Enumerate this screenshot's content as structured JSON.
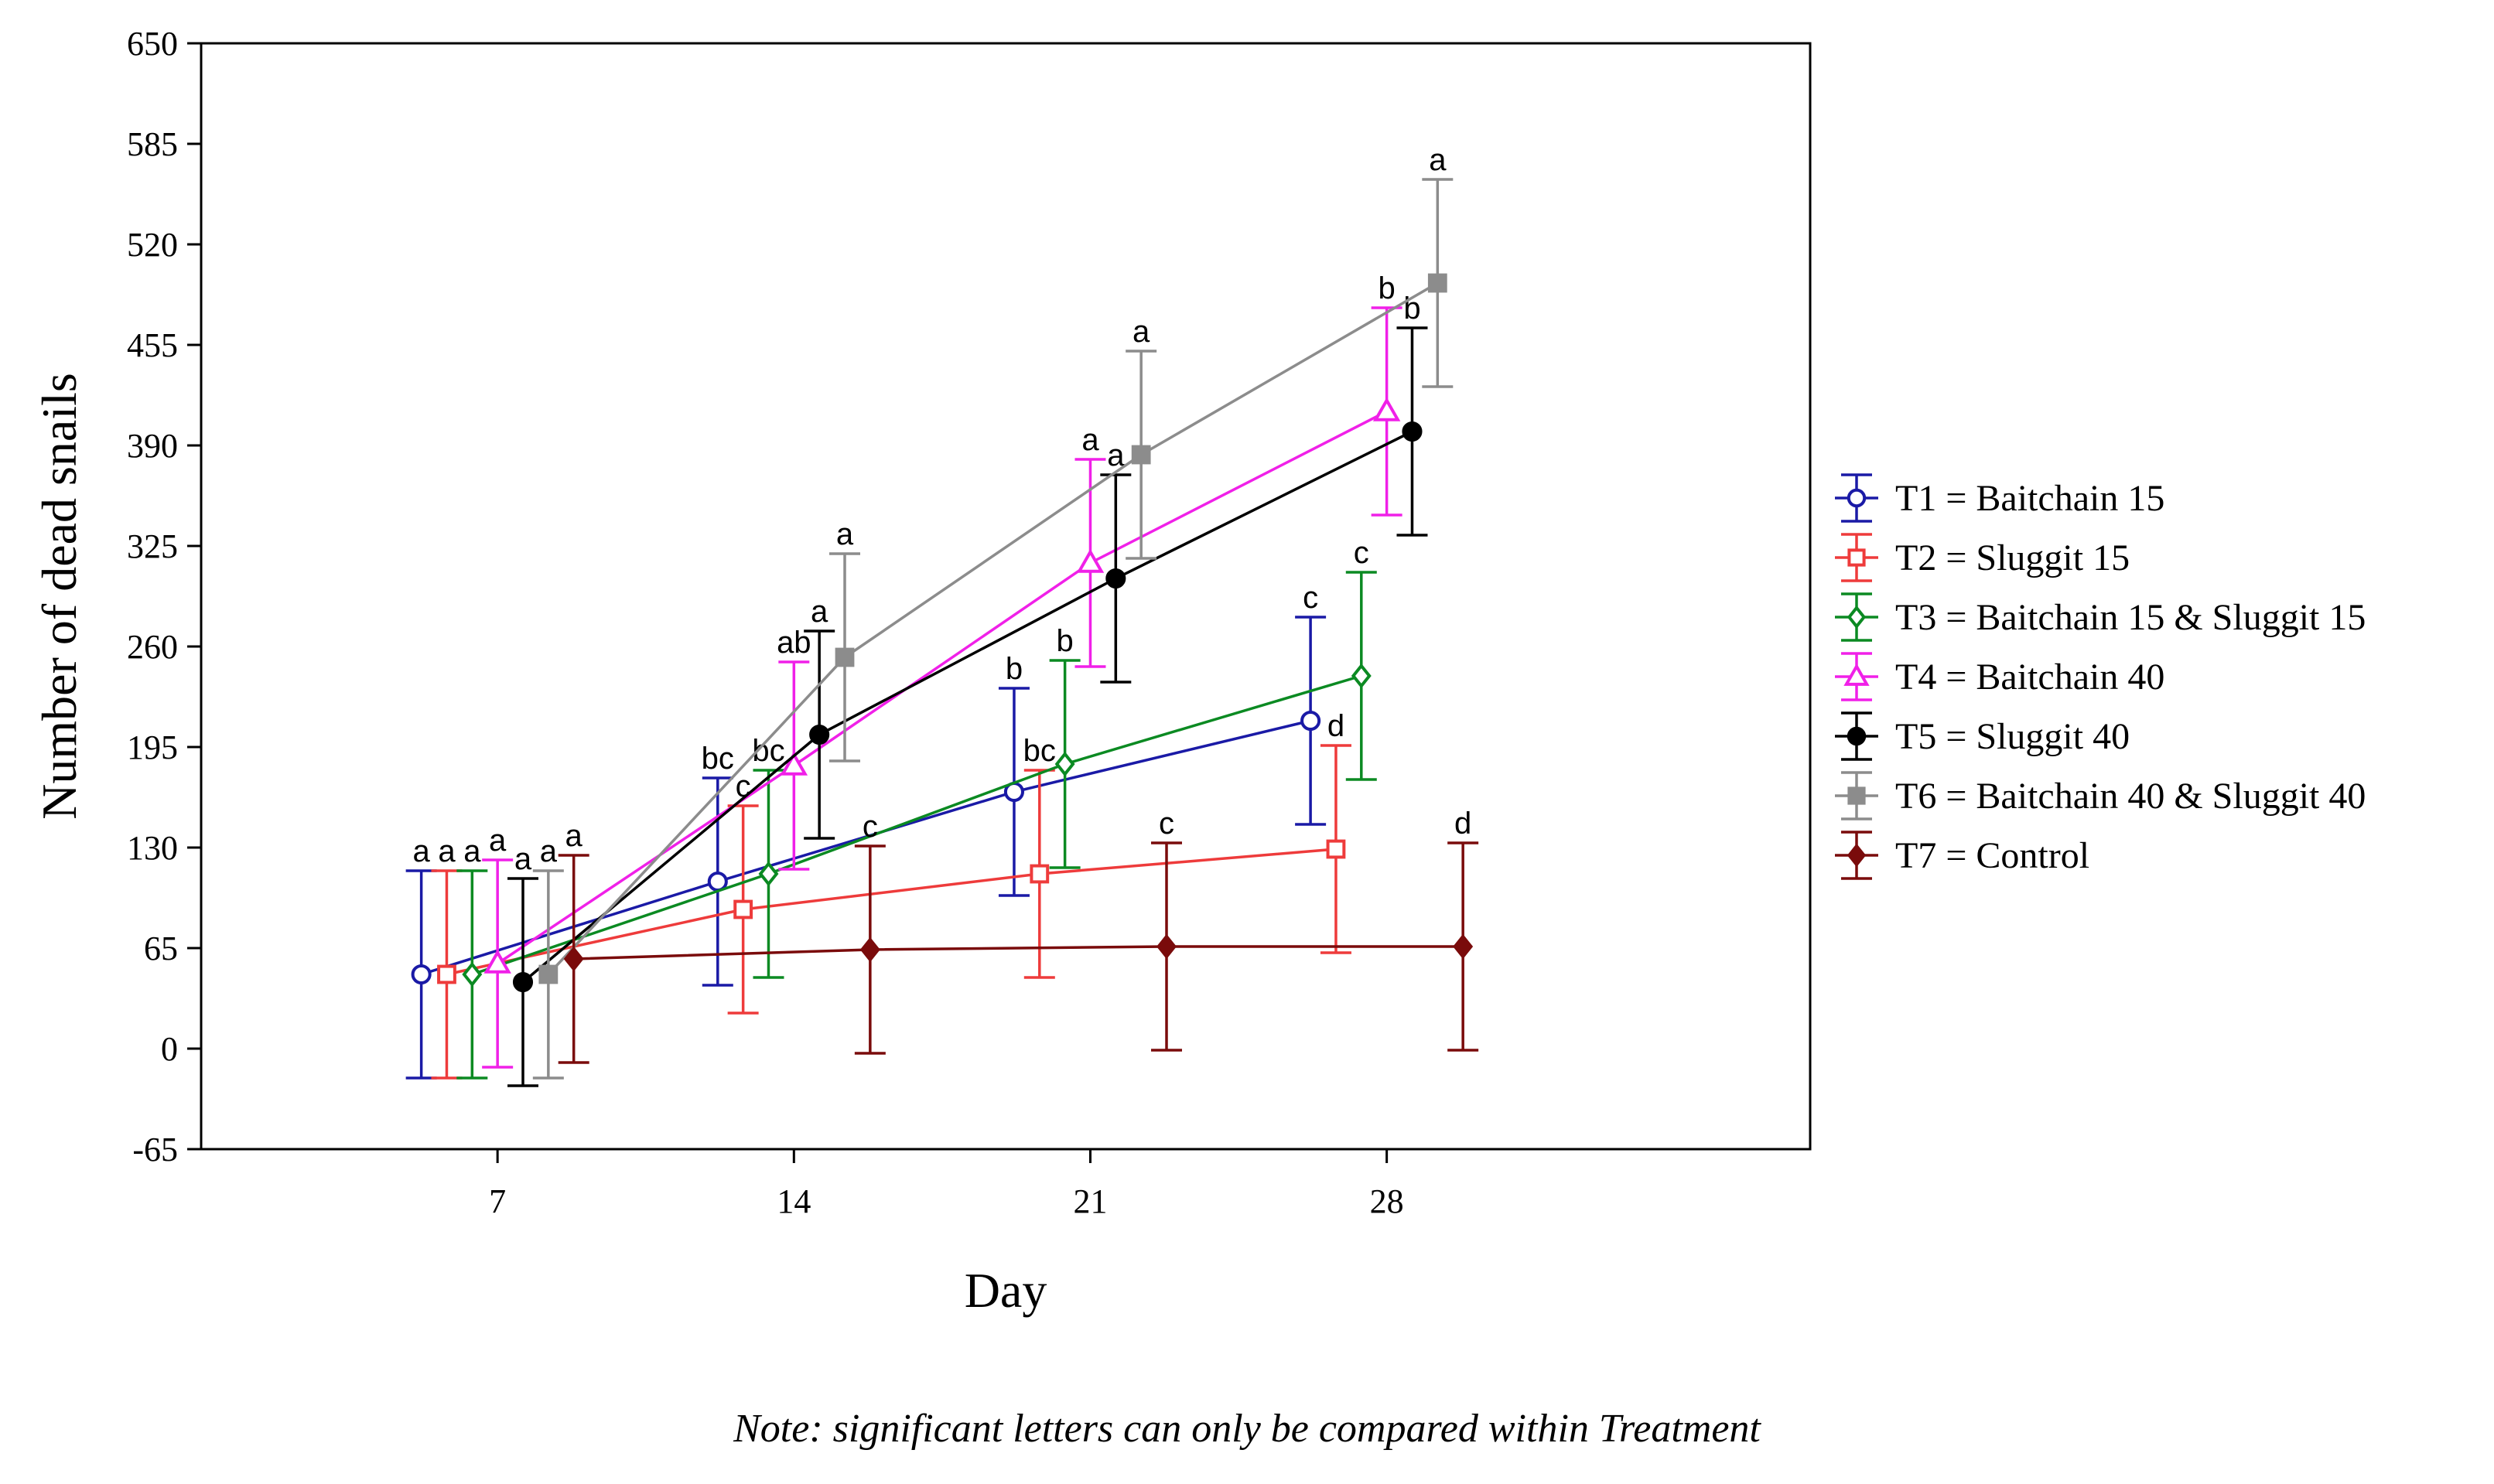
{
  "chart_data": {
    "type": "line",
    "xlabel": "Day",
    "ylabel": "Number of dead snails",
    "ylim": [
      -65,
      650
    ],
    "yticks": [
      -65,
      0,
      65,
      130,
      195,
      260,
      325,
      390,
      455,
      520,
      585,
      650
    ],
    "xticks": [
      7,
      14,
      21,
      28
    ],
    "xlim": [
      0,
      38
    ],
    "grid": false,
    "legend_position": "right",
    "note": "Note: significant letters can only be compared within Treatment",
    "series": [
      {
        "name": "T1 = Baitchain 15",
        "color": "#1a1aa6",
        "marker": "circle-open",
        "points": [
          {
            "x": 5.2,
            "y": 48,
            "err": 67,
            "label": "a"
          },
          {
            "x": 12.2,
            "y": 108,
            "err": 67,
            "label": "bc"
          },
          {
            "x": 19.2,
            "y": 166,
            "err": 67,
            "label": "b"
          },
          {
            "x": 26.2,
            "y": 212,
            "err": 67,
            "label": "c"
          }
        ]
      },
      {
        "name": "T2 = Sluggit 15",
        "color": "#ee3b3b",
        "marker": "square-open",
        "points": [
          {
            "x": 5.8,
            "y": 48,
            "err": 67,
            "label": "a"
          },
          {
            "x": 12.8,
            "y": 90,
            "err": 67,
            "label": "c"
          },
          {
            "x": 19.8,
            "y": 113,
            "err": 67,
            "label": "bc"
          },
          {
            "x": 26.8,
            "y": 129,
            "err": 67,
            "label": "d"
          }
        ]
      },
      {
        "name": "T3 = Baitchain 15 & Sluggit 15",
        "color": "#0b8a22",
        "marker": "diamond-open",
        "points": [
          {
            "x": 6.4,
            "y": 48,
            "err": 67,
            "label": "a"
          },
          {
            "x": 13.4,
            "y": 113,
            "err": 67,
            "label": "bc"
          },
          {
            "x": 20.4,
            "y": 184,
            "err": 67,
            "label": "b"
          },
          {
            "x": 27.4,
            "y": 241,
            "err": 67,
            "label": "c"
          }
        ]
      },
      {
        "name": "T4 = Baitchain 40",
        "color": "#f020e8",
        "marker": "triangle-open",
        "points": [
          {
            "x": 7.0,
            "y": 55,
            "err": 67,
            "label": "a"
          },
          {
            "x": 14.0,
            "y": 183,
            "err": 67,
            "label": "ab"
          },
          {
            "x": 21.0,
            "y": 314,
            "err": 67,
            "label": "a"
          },
          {
            "x": 28.0,
            "y": 412,
            "err": 67,
            "label": "b"
          }
        ]
      },
      {
        "name": "T5 = Sluggit 40",
        "color": "#000000",
        "marker": "circle-filled",
        "points": [
          {
            "x": 7.6,
            "y": 43,
            "err": 67,
            "label": "a"
          },
          {
            "x": 14.6,
            "y": 203,
            "err": 67,
            "label": "a"
          },
          {
            "x": 21.6,
            "y": 304,
            "err": 67,
            "label": "a"
          },
          {
            "x": 28.6,
            "y": 399,
            "err": 67,
            "label": "b"
          }
        ]
      },
      {
        "name": "T6 = Baitchain 40 & Sluggit 40",
        "color": "#8c8c8c",
        "marker": "square-filled",
        "points": [
          {
            "x": 8.2,
            "y": 48,
            "err": 67,
            "label": "a"
          },
          {
            "x": 15.2,
            "y": 253,
            "err": 67,
            "label": "a"
          },
          {
            "x": 22.2,
            "y": 384,
            "err": 67,
            "label": "a"
          },
          {
            "x": 29.2,
            "y": 495,
            "err": 67,
            "label": "a"
          }
        ]
      },
      {
        "name": "T7 = Control",
        "color": "#7a0b0b",
        "marker": "diamond-filled",
        "points": [
          {
            "x": 8.8,
            "y": 58,
            "err": 67,
            "label": "a"
          },
          {
            "x": 15.8,
            "y": 64,
            "err": 67,
            "label": "c"
          },
          {
            "x": 22.8,
            "y": 66,
            "err": 67,
            "label": "c"
          },
          {
            "x": 29.8,
            "y": 66,
            "err": 67,
            "label": "d"
          }
        ]
      }
    ]
  }
}
